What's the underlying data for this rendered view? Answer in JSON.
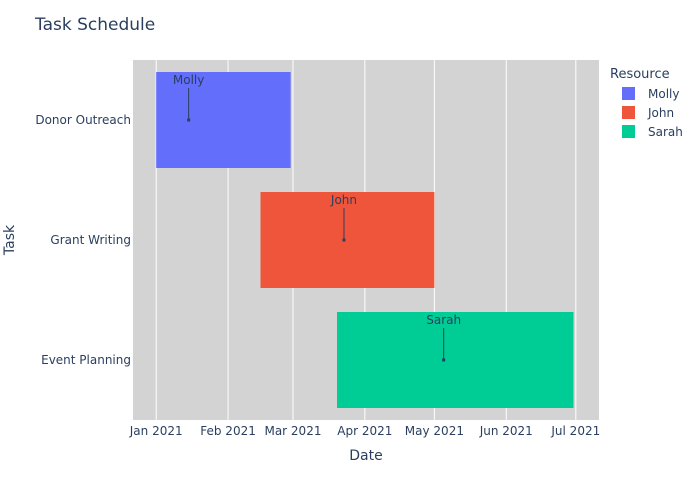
{
  "chart_data": {
    "type": "gantt",
    "title": "Task Schedule",
    "xlabel": "Date",
    "ylabel": "Task",
    "xlim": [
      "2020-12-22",
      "2021-07-11"
    ],
    "x_ticks": [
      {
        "date": "2021-01-01",
        "label": "Jan 2021"
      },
      {
        "date": "2021-02-01",
        "label": "Feb 2021"
      },
      {
        "date": "2021-03-01",
        "label": "Mar 2021"
      },
      {
        "date": "2021-04-01",
        "label": "Apr 2021"
      },
      {
        "date": "2021-05-01",
        "label": "May 2021"
      },
      {
        "date": "2021-06-01",
        "label": "Jun 2021"
      },
      {
        "date": "2021-07-01",
        "label": "Jul 2021"
      }
    ],
    "categories": [
      "Donor Outreach",
      "Grant Writing",
      "Event Planning"
    ],
    "tasks": [
      {
        "task": "Donor Outreach",
        "start": "2021-01-01",
        "finish": "2021-02-28",
        "resource": "Molly",
        "annotation": "Molly",
        "annotation_x": "2021-01-15"
      },
      {
        "task": "Grant Writing",
        "start": "2021-02-15",
        "finish": "2021-05-01",
        "resource": "John",
        "annotation": "John",
        "annotation_x": "2021-03-23"
      },
      {
        "task": "Event Planning",
        "start": "2021-03-20",
        "finish": "2021-06-30",
        "resource": "Sarah",
        "annotation": "Sarah",
        "annotation_x": "2021-05-05"
      }
    ],
    "legend": {
      "title": "Resource",
      "position": "right",
      "items": [
        {
          "name": "Molly",
          "color": "#636efa"
        },
        {
          "name": "John",
          "color": "#ef553b"
        },
        {
          "name": "Sarah",
          "color": "#00cc96"
        }
      ]
    },
    "plot_background": "#d3d3d3",
    "grid": true
  }
}
